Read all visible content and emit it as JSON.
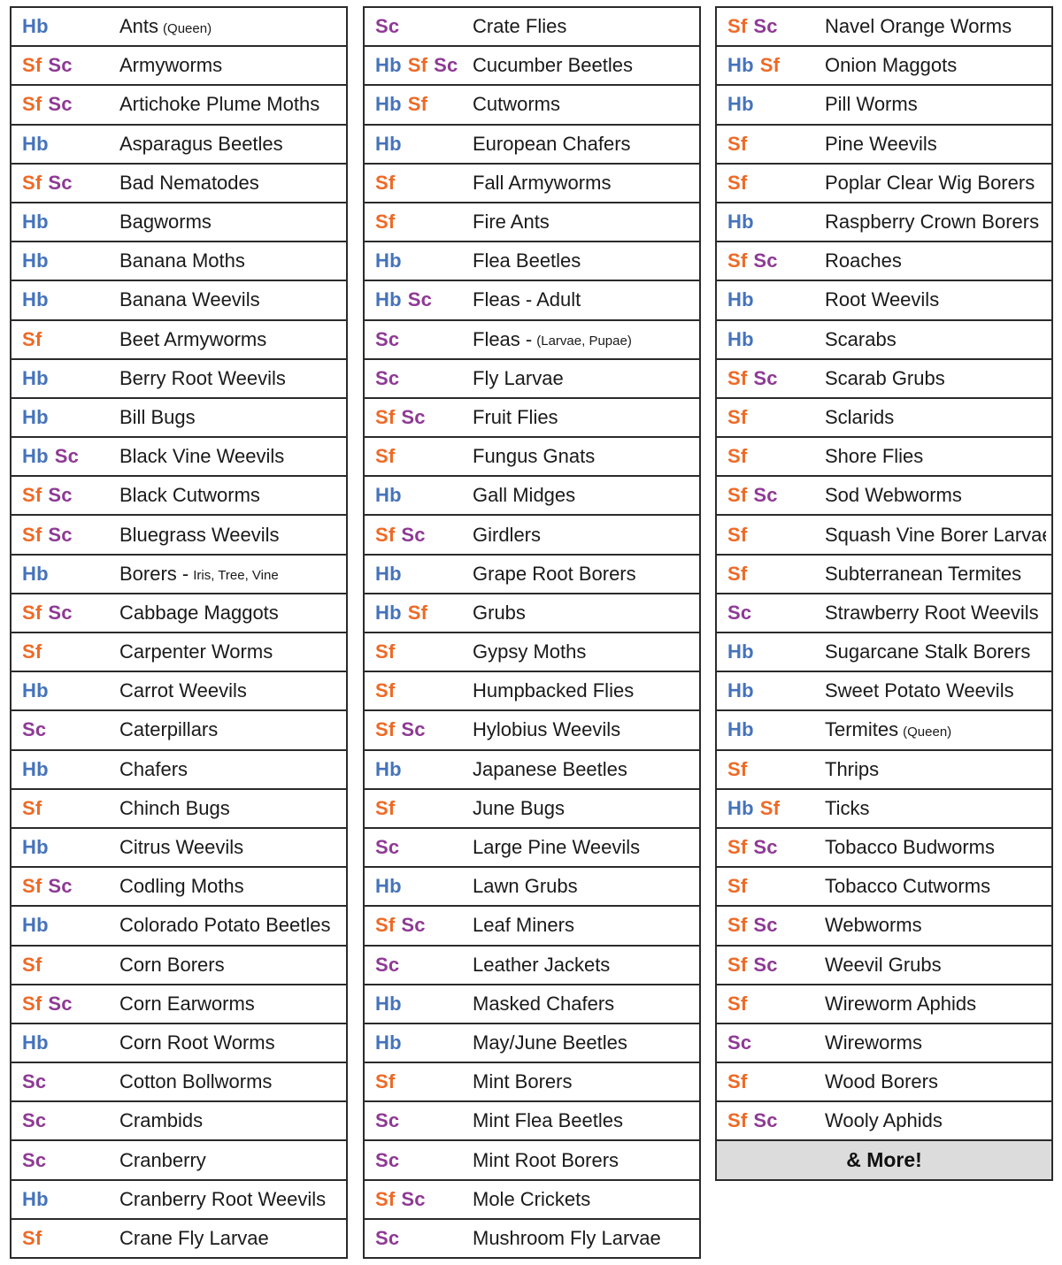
{
  "columns": [
    {
      "rows": [
        {
          "codes": [
            "Hb"
          ],
          "name": "Ants",
          "note": "(Queen)"
        },
        {
          "codes": [
            "Sf",
            "Sc"
          ],
          "name": "Armyworms",
          "note": ""
        },
        {
          "codes": [
            "Sf",
            "Sc"
          ],
          "name": "Artichoke Plume Moths",
          "note": ""
        },
        {
          "codes": [
            "Hb"
          ],
          "name": "Asparagus Beetles",
          "note": ""
        },
        {
          "codes": [
            "Sf",
            "Sc"
          ],
          "name": "Bad Nematodes",
          "note": ""
        },
        {
          "codes": [
            "Hb"
          ],
          "name": "Bagworms",
          "note": ""
        },
        {
          "codes": [
            "Hb"
          ],
          "name": "Banana Moths",
          "note": ""
        },
        {
          "codes": [
            "Hb"
          ],
          "name": "Banana Weevils",
          "note": ""
        },
        {
          "codes": [
            "Sf"
          ],
          "name": "Beet Armyworms",
          "note": ""
        },
        {
          "codes": [
            "Hb"
          ],
          "name": "Berry Root Weevils",
          "note": ""
        },
        {
          "codes": [
            "Hb"
          ],
          "name": "Bill Bugs",
          "note": ""
        },
        {
          "codes": [
            "Hb",
            "Sc"
          ],
          "name": "Black Vine Weevils",
          "note": ""
        },
        {
          "codes": [
            "Sf",
            "Sc"
          ],
          "name": "Black Cutworms",
          "note": ""
        },
        {
          "codes": [
            "Sf",
            "Sc"
          ],
          "name": "Bluegrass Weevils",
          "note": ""
        },
        {
          "codes": [
            "Hb"
          ],
          "name": "Borers -",
          "note": "Iris, Tree, Vine"
        },
        {
          "codes": [
            "Sf",
            "Sc"
          ],
          "name": "Cabbage Maggots",
          "note": ""
        },
        {
          "codes": [
            "Sf"
          ],
          "name": "Carpenter Worms",
          "note": ""
        },
        {
          "codes": [
            "Hb"
          ],
          "name": "Carrot Weevils",
          "note": ""
        },
        {
          "codes": [
            "Sc"
          ],
          "name": "Caterpillars",
          "note": ""
        },
        {
          "codes": [
            "Hb"
          ],
          "name": "Chafers",
          "note": ""
        },
        {
          "codes": [
            "Sf"
          ],
          "name": "Chinch Bugs",
          "note": ""
        },
        {
          "codes": [
            "Hb"
          ],
          "name": "Citrus Weevils",
          "note": ""
        },
        {
          "codes": [
            "Sf",
            "Sc"
          ],
          "name": "Codling Moths",
          "note": ""
        },
        {
          "codes": [
            "Hb"
          ],
          "name": "Colorado Potato Beetles",
          "note": ""
        },
        {
          "codes": [
            "Sf"
          ],
          "name": "Corn Borers",
          "note": ""
        },
        {
          "codes": [
            "Sf",
            "Sc"
          ],
          "name": "Corn Earworms",
          "note": ""
        },
        {
          "codes": [
            "Hb"
          ],
          "name": "Corn Root Worms",
          "note": ""
        },
        {
          "codes": [
            "Sc"
          ],
          "name": "Cotton Bollworms",
          "note": ""
        },
        {
          "codes": [
            "Sc"
          ],
          "name": "Crambids",
          "note": ""
        },
        {
          "codes": [
            "Sc"
          ],
          "name": "Cranberry",
          "note": ""
        },
        {
          "codes": [
            "Hb"
          ],
          "name": "Cranberry Root Weevils",
          "note": ""
        },
        {
          "codes": [
            "Sf"
          ],
          "name": "Crane Fly Larvae",
          "note": ""
        }
      ]
    },
    {
      "rows": [
        {
          "codes": [
            "Sc"
          ],
          "name": "Crate Flies",
          "note": ""
        },
        {
          "codes": [
            "Hb",
            "Sf",
            "Sc"
          ],
          "name": "Cucumber Beetles",
          "note": ""
        },
        {
          "codes": [
            "Hb",
            "Sf"
          ],
          "name": "Cutworms",
          "note": ""
        },
        {
          "codes": [
            "Hb"
          ],
          "name": "European Chafers",
          "note": ""
        },
        {
          "codes": [
            "Sf"
          ],
          "name": "Fall Armyworms",
          "note": ""
        },
        {
          "codes": [
            "Sf"
          ],
          "name": "Fire Ants",
          "note": ""
        },
        {
          "codes": [
            "Hb"
          ],
          "name": "Flea Beetles",
          "note": ""
        },
        {
          "codes": [
            "Hb",
            "Sc"
          ],
          "name": "Fleas - Adult",
          "note": ""
        },
        {
          "codes": [
            "Sc"
          ],
          "name": "Fleas -",
          "note": "(Larvae, Pupae)"
        },
        {
          "codes": [
            "Sc"
          ],
          "name": "Fly Larvae",
          "note": ""
        },
        {
          "codes": [
            "Sf",
            "Sc"
          ],
          "name": "Fruit Flies",
          "note": ""
        },
        {
          "codes": [
            "Sf"
          ],
          "name": "Fungus Gnats",
          "note": ""
        },
        {
          "codes": [
            "Hb"
          ],
          "name": "Gall Midges",
          "note": ""
        },
        {
          "codes": [
            "Sf",
            "Sc"
          ],
          "name": "Girdlers",
          "note": ""
        },
        {
          "codes": [
            "Hb"
          ],
          "name": "Grape Root Borers",
          "note": ""
        },
        {
          "codes": [
            "Hb",
            "Sf"
          ],
          "name": "Grubs",
          "note": ""
        },
        {
          "codes": [
            "Sf"
          ],
          "name": "Gypsy Moths",
          "note": ""
        },
        {
          "codes": [
            "Sf"
          ],
          "name": "Humpbacked Flies",
          "note": ""
        },
        {
          "codes": [
            "Sf",
            "Sc"
          ],
          "name": "Hylobius Weevils",
          "note": ""
        },
        {
          "codes": [
            "Hb"
          ],
          "name": "Japanese Beetles",
          "note": ""
        },
        {
          "codes": [
            "Sf"
          ],
          "name": "June Bugs",
          "note": ""
        },
        {
          "codes": [
            "Sc"
          ],
          "name": "Large Pine Weevils",
          "note": ""
        },
        {
          "codes": [
            "Hb"
          ],
          "name": "Lawn Grubs",
          "note": ""
        },
        {
          "codes": [
            "Sf",
            "Sc"
          ],
          "name": "Leaf Miners",
          "note": ""
        },
        {
          "codes": [
            "Sc"
          ],
          "name": "Leather Jackets",
          "note": ""
        },
        {
          "codes": [
            "Hb"
          ],
          "name": "Masked Chafers",
          "note": ""
        },
        {
          "codes": [
            "Hb"
          ],
          "name": "May/June Beetles",
          "note": ""
        },
        {
          "codes": [
            "Sf"
          ],
          "name": "Mint Borers",
          "note": ""
        },
        {
          "codes": [
            "Sc"
          ],
          "name": "Mint Flea Beetles",
          "note": ""
        },
        {
          "codes": [
            "Sc"
          ],
          "name": "Mint Root Borers",
          "note": ""
        },
        {
          "codes": [
            "Sf",
            "Sc"
          ],
          "name": "Mole Crickets",
          "note": ""
        },
        {
          "codes": [
            "Sc"
          ],
          "name": "Mushroom Fly Larvae",
          "note": ""
        }
      ]
    },
    {
      "rows": [
        {
          "codes": [
            "Sf",
            "Sc"
          ],
          "name": "Navel Orange Worms",
          "note": ""
        },
        {
          "codes": [
            "Hb",
            "Sf"
          ],
          "name": "Onion Maggots",
          "note": ""
        },
        {
          "codes": [
            "Hb"
          ],
          "name": "Pill Worms",
          "note": ""
        },
        {
          "codes": [
            "Sf"
          ],
          "name": "Pine Weevils",
          "note": ""
        },
        {
          "codes": [
            "Sf"
          ],
          "name": "Poplar Clear Wig Borers",
          "note": ""
        },
        {
          "codes": [
            "Hb"
          ],
          "name": "Raspberry Crown Borers",
          "note": ""
        },
        {
          "codes": [
            "Sf",
            "Sc"
          ],
          "name": "Roaches",
          "note": ""
        },
        {
          "codes": [
            "Hb"
          ],
          "name": "Root Weevils",
          "note": ""
        },
        {
          "codes": [
            "Hb"
          ],
          "name": "Scarabs",
          "note": ""
        },
        {
          "codes": [
            "Sf",
            "Sc"
          ],
          "name": "Scarab Grubs",
          "note": ""
        },
        {
          "codes": [
            "Sf"
          ],
          "name": "Sclarids",
          "note": ""
        },
        {
          "codes": [
            "Sf"
          ],
          "name": "Shore Flies",
          "note": ""
        },
        {
          "codes": [
            "Sf",
            "Sc"
          ],
          "name": "Sod Webworms",
          "note": ""
        },
        {
          "codes": [
            "Sf"
          ],
          "name": "Squash Vine Borer Larvae",
          "note": ""
        },
        {
          "codes": [
            "Sf"
          ],
          "name": "Subterranean Termites",
          "note": ""
        },
        {
          "codes": [
            "Sc"
          ],
          "name": "Strawberry Root Weevils",
          "note": ""
        },
        {
          "codes": [
            "Hb"
          ],
          "name": "Sugarcane Stalk Borers",
          "note": ""
        },
        {
          "codes": [
            "Hb"
          ],
          "name": "Sweet Potato Weevils",
          "note": ""
        },
        {
          "codes": [
            "Hb"
          ],
          "name": "Termites",
          "note": "(Queen)"
        },
        {
          "codes": [
            "Sf"
          ],
          "name": "Thrips",
          "note": ""
        },
        {
          "codes": [
            "Hb",
            "Sf"
          ],
          "name": "Ticks",
          "note": ""
        },
        {
          "codes": [
            "Sf",
            "Sc"
          ],
          "name": "Tobacco Budworms",
          "note": ""
        },
        {
          "codes": [
            "Sf"
          ],
          "name": "Tobacco Cutworms",
          "note": ""
        },
        {
          "codes": [
            "Sf",
            "Sc"
          ],
          "name": "Webworms",
          "note": ""
        },
        {
          "codes": [
            "Sf",
            "Sc"
          ],
          "name": "Weevil Grubs",
          "note": ""
        },
        {
          "codes": [
            "Sf"
          ],
          "name": "Wireworm Aphids",
          "note": ""
        },
        {
          "codes": [
            "Sc"
          ],
          "name": "Wireworms",
          "note": ""
        },
        {
          "codes": [
            "Sf"
          ],
          "name": "Wood Borers",
          "note": ""
        },
        {
          "codes": [
            "Sf",
            "Sc"
          ],
          "name": "Wooly Aphids",
          "note": ""
        }
      ],
      "more_label": "& More!"
    }
  ],
  "colors": {
    "Hb": "#4573bb",
    "Sf": "#ee6a26",
    "Sc": "#8e3a94",
    "border": "#2b2b2b",
    "more_background": "#dcdcdc"
  }
}
